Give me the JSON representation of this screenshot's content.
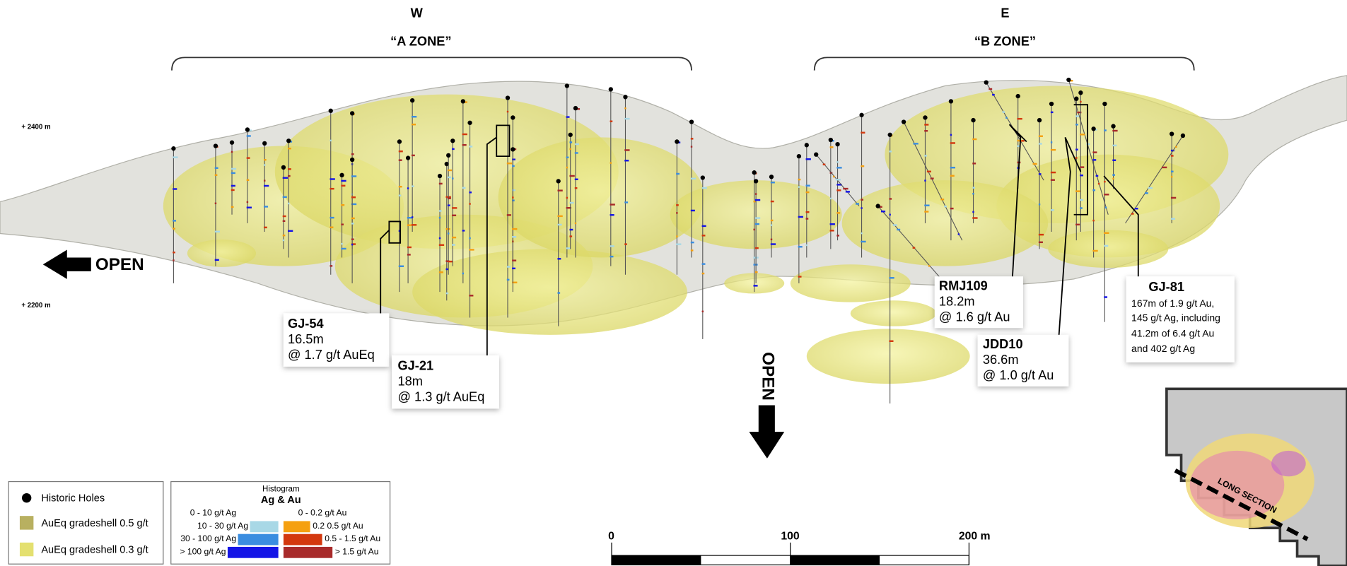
{
  "header": {
    "west": "W",
    "east": "E",
    "zones": [
      "“A ZONE”",
      "“B ZONE”"
    ]
  },
  "elevations": [
    "+ 2400 m",
    "+ 2200 m"
  ],
  "open_labels": [
    "OPEN",
    "OPEN"
  ],
  "callouts": [
    {
      "title": "GJ-54",
      "lines": [
        "16.5m",
        "@ 1.7 g/t AuEq"
      ]
    },
    {
      "title": "GJ-21",
      "lines": [
        "18m",
        "@ 1.3 g/t AuEq"
      ]
    },
    {
      "title": "RMJ109",
      "lines": [
        "18.2m",
        "@ 1.6 g/t Au"
      ]
    },
    {
      "title": "JDD10",
      "lines": [
        "36.6m",
        "@ 1.0 g/t Au"
      ]
    },
    {
      "title": "GJ-81",
      "lines": [
        "167m of 1.9 g/t Au,",
        "145 g/t Ag, including",
        "41.2m of  6.4 g/t Au",
        "and 402 g/t Ag"
      ]
    }
  ],
  "legend": [
    "Historic Holes",
    "AuEq gradeshell 0.5 g/t",
    "AuEq gradeshell 0.3 g/t"
  ],
  "histogram_legend": {
    "title": "Histogram",
    "subtitle": "Ag & Au",
    "ag": [
      "0 - 10 g/t Ag",
      "10 - 30 g/t Ag",
      "30 - 100 g/t Ag",
      "> 100 g/t Ag"
    ],
    "au": [
      "0 - 0.2 g/t Au",
      "0.2 0.5 g/t Au",
      "0.5 - 1.5 g/t Au",
      "> 1.5 g/t Au"
    ]
  },
  "scale_bar": [
    "0",
    "100",
    "200 m"
  ],
  "inset": {
    "label": "LONG SECTION"
  }
}
